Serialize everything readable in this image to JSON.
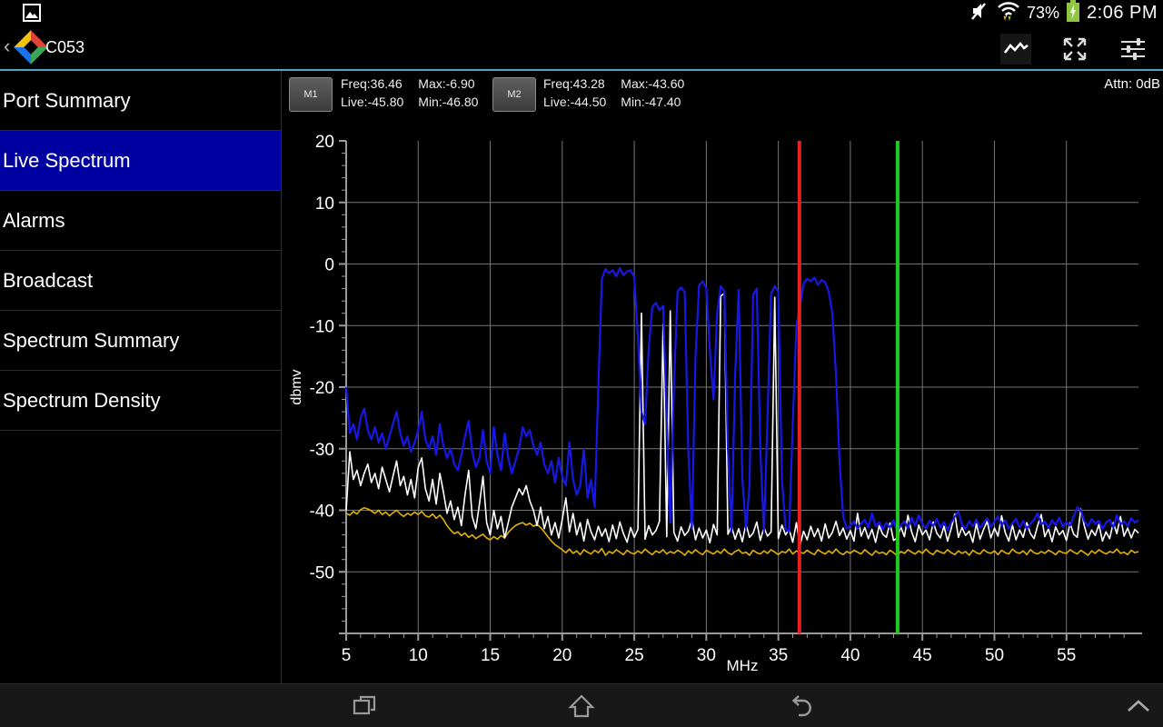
{
  "status_bar": {
    "time": "2:06 PM",
    "battery_percent": "73%",
    "icons": {
      "notification": "gallery-icon",
      "volume": "volume-muted-icon",
      "wifi": "wifi-activity-icon",
      "battery": "battery-charging-icon"
    }
  },
  "app_bar": {
    "back_caret": "‹",
    "title": "C053",
    "icons": {
      "trace": "waveform-icon",
      "expand": "expand-fullscreen-icon",
      "settings": "sliders-icon"
    }
  },
  "sidebar": {
    "selected_index": 1,
    "items": [
      {
        "label": "Port Summary",
        "selected": false
      },
      {
        "label": "Live Spectrum",
        "selected": true
      },
      {
        "label": "Alarms",
        "selected": false
      },
      {
        "label": "Broadcast",
        "selected": false
      },
      {
        "label": "Spectrum Summary",
        "selected": false
      },
      {
        "label": "Spectrum Density",
        "selected": false
      }
    ]
  },
  "spectrum": {
    "attenuation_label": "Attn: 0dB",
    "markers": [
      {
        "label": "M1",
        "freq_label": "Freq:36.46",
        "max_label": "Max:-6.90",
        "live_label": "Live:-45.80",
        "min_label": "Min:-46.80",
        "freq_mhz": 36.46,
        "color": "#e82020"
      },
      {
        "label": "M2",
        "freq_label": "Freq:43.28",
        "max_label": "Max:-43.60",
        "live_label": "Live:-44.50",
        "min_label": "Min:-47.40",
        "freq_mhz": 43.28,
        "color": "#1ecb1e"
      }
    ]
  },
  "chart_data": {
    "type": "line",
    "title": "Live Spectrum",
    "xlabel": "MHz",
    "ylabel": "dbmv",
    "xlim": [
      5,
      60
    ],
    "ylim": [
      -60,
      20
    ],
    "x_major_ticks": [
      5,
      10,
      15,
      20,
      25,
      30,
      35,
      40,
      45,
      50,
      55
    ],
    "x_minor_step": 1,
    "y_major_ticks": [
      20,
      10,
      0,
      -10,
      -20,
      -30,
      -40,
      -50
    ],
    "y_minor_step": 2,
    "grid": true,
    "legend": "none",
    "colors": {
      "grid": "#757575",
      "axis": "#9a9a9a",
      "text": "#ffffff"
    },
    "marker_lines": [
      {
        "name": "M1",
        "freq": 36.46,
        "color": "#e82020"
      },
      {
        "name": "M2",
        "freq": 43.28,
        "color": "#1ecb1e"
      }
    ],
    "freq_start": 5,
    "freq_step": 0.25,
    "series": [
      {
        "name": "min",
        "color": "#e3b200",
        "width": 1.6,
        "values": [
          -40.5,
          -40.8,
          -40.2,
          -40.6,
          -39.9,
          -39.6,
          -39.8,
          -40.1,
          -40.5,
          -40,
          -40.7,
          -40.3,
          -40.9,
          -40.4,
          -40,
          -40.6,
          -41,
          -40.5,
          -40.8,
          -40.3,
          -40.7,
          -40.2,
          -40.9,
          -41.1,
          -40.6,
          -41.3,
          -40.8,
          -41.5,
          -42.5,
          -43.2,
          -43.8,
          -43.5,
          -44.1,
          -43.7,
          -44.4,
          -44,
          -44.6,
          -44.2,
          -43.9,
          -44.5,
          -44.8,
          -44.3,
          -44.7,
          -44.1,
          -44.5,
          -43.6,
          -43,
          -42.5,
          -42.2,
          -42,
          -42.4,
          -42.1,
          -42.6,
          -42.3,
          -42.8,
          -43.5,
          -44.3,
          -45,
          -45.6,
          -46,
          -46.4,
          -46.9,
          -46.3,
          -47,
          -46.6,
          -47.2,
          -46.4,
          -46.8,
          -47.1,
          -46.5,
          -46.9,
          -46.2,
          -47.3,
          -46.7,
          -47,
          -46.4,
          -46.8,
          -47.2,
          -46.5,
          -46.9,
          -47.1,
          -46.6,
          -47,
          -46.3,
          -46.8,
          -47.2,
          -46.6,
          -46.9,
          -46.4,
          -47.1,
          -46.7,
          -47,
          -46.5,
          -46.8,
          -47.3,
          -46.6,
          -47,
          -46.4,
          -46.9,
          -47.2,
          -46.5,
          -46.8,
          -47.1,
          -46.6,
          -47,
          -46.3,
          -46.9,
          -47.2,
          -46.7,
          -46.4,
          -47,
          -46.8,
          -47.3,
          -46.5,
          -46.9,
          -47.1,
          -46.6,
          -47,
          -46.4,
          -46.8,
          -47.2,
          -46.7,
          -46.9,
          -46.3,
          -47.1,
          -46.6,
          -46.8,
          -47,
          -46.5,
          -46.9,
          -47.2,
          -46.4,
          -46.8,
          -47.1,
          -46.6,
          -47,
          -46.3,
          -46.9,
          -47.2,
          -46.7,
          -47,
          -46.5,
          -46.8,
          -47.1,
          -46.4,
          -46.9,
          -47.3,
          -46.6,
          -47,
          -46.8,
          -47.2,
          -46.5,
          -46.9,
          -47.4,
          -46.7,
          -47,
          -46.4,
          -46.8,
          -47.1,
          -46.6,
          -47,
          -46.3,
          -46.9,
          -47.2,
          -46.5,
          -46.8,
          -47,
          -46.4,
          -46.9,
          -47.2,
          -46.6,
          -47,
          -46.7,
          -47.3,
          -46.5,
          -46.9,
          -47.1,
          -46.4,
          -46.8,
          -47,
          -46.6,
          -47.2,
          -46.5,
          -46.9,
          -47.1,
          -46.3,
          -46.8,
          -47,
          -46.6,
          -47.2,
          -46.4,
          -46.9,
          -47.1,
          -46.7,
          -47,
          -46.5,
          -46.8,
          -47.2,
          -46.6,
          -46.9,
          -47,
          -46.4,
          -46.8,
          -47.1,
          -46.5,
          -46.9,
          -47.3,
          -46.6,
          -47,
          -46.4,
          -46.8,
          -47.1,
          -46.7,
          -46.9,
          -46.3,
          -47,
          -46.8,
          -47.2,
          -46.5,
          -46.9,
          -46.7
        ]
      },
      {
        "name": "live",
        "color": "#ffffff",
        "width": 1.6,
        "values": [
          -40,
          -30.5,
          -35,
          -33.5,
          -36,
          -34,
          -32.5,
          -35.5,
          -34,
          -36.5,
          -33,
          -35,
          -37,
          -34.5,
          -32,
          -36,
          -34.5,
          -37.5,
          -35,
          -38,
          -33,
          -31.5,
          -36.5,
          -38.5,
          -35,
          -39,
          -34,
          -37,
          -40.5,
          -38.5,
          -41.5,
          -39.5,
          -42.5,
          -37.5,
          -33.5,
          -41,
          -43,
          -39,
          -34.5,
          -42,
          -44,
          -40,
          -43,
          -41,
          -44.5,
          -42,
          -39.5,
          -38,
          -36.5,
          -37.5,
          -36,
          -38.5,
          -40,
          -42.5,
          -39.5,
          -43,
          -41,
          -44,
          -42,
          -44.5,
          -41.5,
          -38,
          -43.5,
          -40.5,
          -44,
          -42,
          -45,
          -41.5,
          -43.5,
          -44.8,
          -42.6,
          -44.2,
          -43,
          -45.1,
          -42.4,
          -44.6,
          -41.9,
          -43.8,
          -45.2,
          -42.8,
          -44.4,
          -43.1,
          -8,
          -44.7,
          -42.5,
          -44,
          -43.3,
          -41.8,
          -9.8,
          -44.3,
          -7.6,
          -43.6,
          -45,
          -42.7,
          -44.1,
          -43.4,
          -41.6,
          -44.8,
          -42.9,
          -44.5,
          -43.2,
          -45.3,
          -42.3,
          -44,
          -5.2,
          -4.8,
          -43.9,
          -42.6,
          -44.7,
          -43,
          -45.1,
          -42.2,
          -44.4,
          -43.7,
          -41.9,
          -44.9,
          -42.8,
          -44.2,
          -43.5,
          -5.4,
          -44.6,
          -42.4,
          -44,
          -43.1,
          -45.2,
          -42,
          -45.8,
          -43.4,
          -44.8,
          -42.6,
          -44.3,
          -43,
          -45,
          -42.2,
          -44.5,
          -43.6,
          -41.8,
          -44.1,
          -42.9,
          -44.7,
          -43.3,
          -45,
          -40.5,
          -44.2,
          -42.8,
          -44.6,
          -43.1,
          -45.2,
          -42.5,
          -43.9,
          -44.4,
          -42.1,
          -44.9,
          -44.5,
          -42.7,
          -44.3,
          -40.8,
          -43.5,
          -45.1,
          -42.4,
          -44,
          -43.2,
          -44.8,
          -41.9,
          -43.7,
          -44.5,
          -42.6,
          -45,
          -43,
          -40.6,
          -44.4,
          -42.8,
          -44.1,
          -43.4,
          -45.2,
          -42.2,
          -44.7,
          -43.1,
          -41.8,
          -44.5,
          -42.9,
          -44.2,
          -40.9,
          -43.6,
          -45,
          -42.4,
          -44.8,
          -43.2,
          -44.4,
          -42,
          -43.8,
          -44.6,
          -42.5,
          -40.7,
          -44.3,
          -43,
          -45.1,
          -42.7,
          -44,
          -43.3,
          -44.9,
          -42.1,
          -43.9,
          -44.4,
          -39.8,
          -42.6,
          -44.7,
          -43.2,
          -44.1,
          -42.3,
          -45,
          -43.5,
          -44.6,
          -42,
          -43.8,
          -41,
          -44.2,
          -42.9,
          -44.5,
          -43.1,
          -43.7
        ]
      },
      {
        "name": "max",
        "color": "#1717e8",
        "width": 2.2,
        "values": [
          -20,
          -27.5,
          -26,
          -28.5,
          -25,
          -23.5,
          -27,
          -28.5,
          -26.5,
          -29,
          -27.5,
          -30,
          -28,
          -26,
          -24,
          -27.5,
          -29.5,
          -28,
          -30.5,
          -29,
          -27,
          -24,
          -28.5,
          -30,
          -28,
          -31,
          -26,
          -29.5,
          -31.5,
          -30,
          -32.5,
          -33.5,
          -31,
          -28,
          -25.5,
          -30.5,
          -33,
          -31.5,
          -27,
          -32,
          -34,
          -26.5,
          -31,
          -33.5,
          -27.5,
          -31.5,
          -34,
          -32,
          -30,
          -26.5,
          -28,
          -27,
          -29.5,
          -31,
          -29,
          -32.5,
          -34,
          -32,
          -35.5,
          -31.5,
          -34.5,
          -36,
          -29,
          -35,
          -37.5,
          -36,
          -30,
          -38,
          -35,
          -39.5,
          -20,
          -2.5,
          -0.8,
          -1.5,
          -1,
          -2,
          -0.7,
          -1.8,
          -1.2,
          -1,
          -2.2,
          -12,
          -24,
          -26,
          -14,
          -7,
          -6.3,
          -7.5,
          -6.8,
          -25,
          -42,
          -20,
          -4.5,
          -3.8,
          -4.6,
          -30,
          -43,
          -15,
          -3.5,
          -2.8,
          -4,
          -14,
          -22,
          -8,
          -3.6,
          -4.4,
          -30,
          -43.5,
          -18,
          -4.2,
          -35,
          -43,
          -36,
          -5,
          -4,
          -30,
          -43.5,
          -25,
          -4.8,
          -3.6,
          -4.5,
          -35,
          -43,
          -43.5,
          -26,
          -10,
          -6.9,
          -3.2,
          -2.4,
          -2.8,
          -2.2,
          -3.4,
          -2.6,
          -3,
          -4.5,
          -8,
          -18,
          -32,
          -41,
          -43,
          -42.5,
          -41.8,
          -43,
          -42.2,
          -41.5,
          -42.8,
          -40.5,
          -42.6,
          -41.9,
          -43.1,
          -42,
          -42.8,
          -41.6,
          -43.6,
          -42.4,
          -41.8,
          -42.9,
          -41.2,
          -42.5,
          -40.8,
          -42.2,
          -43,
          -41.7,
          -42.6,
          -41.4,
          -42.8,
          -41.9,
          -43.2,
          -42,
          -41,
          -40.2,
          -42.4,
          -43,
          -41.8,
          -42.6,
          -41.5,
          -42.9,
          -42,
          -41.3,
          -42.7,
          -41.8,
          -41,
          -42.5,
          -41.6,
          -43,
          -42.1,
          -41.4,
          -42.8,
          -41.7,
          -43.1,
          -42.2,
          -41.5,
          -40.5,
          -42.3,
          -41.8,
          -42.9,
          -41.6,
          -42.4,
          -41.2,
          -42.7,
          -41.9,
          -42.5,
          -41,
          -39.5,
          -40,
          -41.8,
          -42.6,
          -41.4,
          -42.2,
          -41.7,
          -43,
          -42,
          -41.5,
          -42.8,
          -40.8,
          -42.3,
          -41.8,
          -42.6,
          -41.3,
          -42,
          -41.6
        ]
      }
    ]
  },
  "nav_bar": {
    "icons": {
      "recents": "recent-apps-icon",
      "home": "home-icon",
      "back": "back-icon",
      "collapse": "chevron-up-icon"
    }
  }
}
